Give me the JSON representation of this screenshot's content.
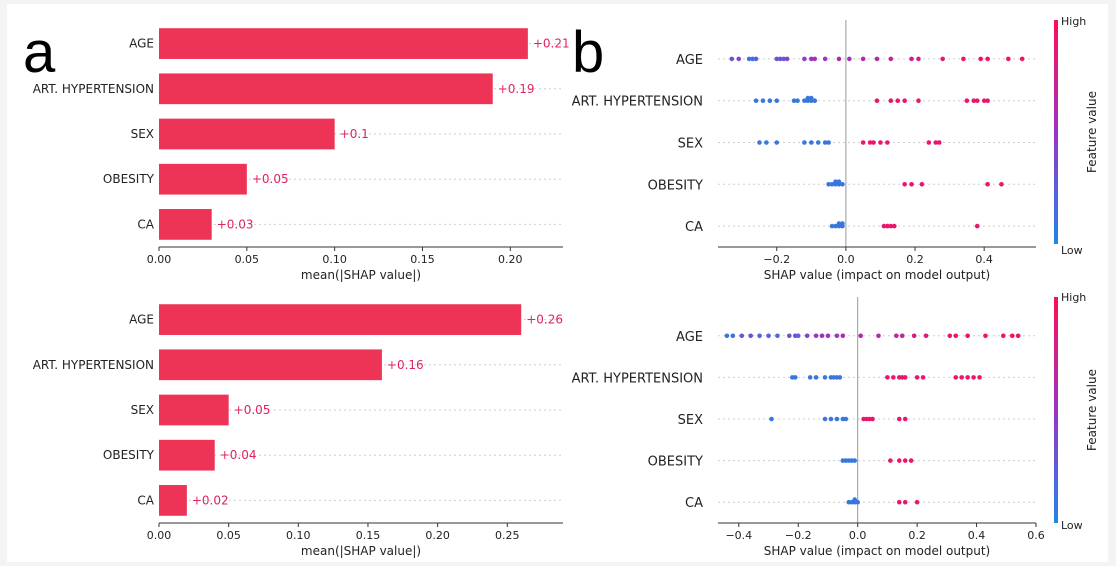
{
  "panel_labels": {
    "a": "a",
    "b": "b"
  },
  "colors": {
    "bar": "#ed3356",
    "label": "#e0245e",
    "low": "#1e88e5",
    "high": "#ff0d57",
    "mid": "#9b33c4"
  },
  "chart_data": [
    {
      "id": "bar-top",
      "type": "bar",
      "orientation": "horizontal",
      "categories": [
        "AGE",
        "ART. HYPERTENSION",
        "SEX",
        "OBESITY",
        "CA"
      ],
      "values": [
        0.21,
        0.19,
        0.1,
        0.05,
        0.03
      ],
      "data_labels": [
        "+0.21",
        "+0.19",
        "+0.1",
        "+0.05",
        "+0.03"
      ],
      "xlabel": "mean(|SHAP value|)",
      "xticks": [
        0.0,
        0.05,
        0.1,
        0.15,
        0.2
      ],
      "xtick_labels": [
        "0.00",
        "0.05",
        "0.10",
        "0.15",
        "0.20"
      ],
      "xlim": [
        0,
        0.23
      ]
    },
    {
      "id": "bar-bottom",
      "type": "bar",
      "orientation": "horizontal",
      "categories": [
        "AGE",
        "ART. HYPERTENSION",
        "SEX",
        "OBESITY",
        "CA"
      ],
      "values": [
        0.26,
        0.16,
        0.05,
        0.04,
        0.02
      ],
      "data_labels": [
        "+0.26",
        "+0.16",
        "+0.05",
        "+0.04",
        "+0.02"
      ],
      "xlabel": "mean(|SHAP value|)",
      "xticks": [
        0.0,
        0.05,
        0.1,
        0.15,
        0.2,
        0.25
      ],
      "xtick_labels": [
        "0.00",
        "0.05",
        "0.10",
        "0.15",
        "0.20",
        "0.25"
      ],
      "xlim": [
        0,
        0.29
      ]
    },
    {
      "id": "beeswarm-top",
      "type": "scatter",
      "categories": [
        "AGE",
        "ART. HYPERTENSION",
        "SEX",
        "OBESITY",
        "CA"
      ],
      "xlabel": "SHAP value (impact on model output)",
      "xticks": [
        -0.2,
        0.0,
        0.2,
        0.4
      ],
      "xtick_labels": [
        "−0.2",
        "0.0",
        "0.2",
        "0.4"
      ],
      "xlim": [
        -0.37,
        0.55
      ],
      "colorbar": {
        "label": "Feature value",
        "high": "High",
        "low": "Low"
      },
      "series": [
        {
          "name": "AGE",
          "points": [
            [
              -0.33,
              0.3
            ],
            [
              -0.31,
              0.35
            ],
            [
              -0.28,
              0.1
            ],
            [
              -0.27,
              0.15
            ],
            [
              -0.26,
              0.2
            ],
            [
              -0.2,
              0.3
            ],
            [
              -0.19,
              0.35
            ],
            [
              -0.18,
              0.3
            ],
            [
              -0.17,
              0.4
            ],
            [
              -0.12,
              0.45
            ],
            [
              -0.1,
              0.5
            ],
            [
              -0.09,
              0.55
            ],
            [
              -0.06,
              0.5
            ],
            [
              -0.02,
              0.6
            ],
            [
              0.01,
              0.55
            ],
            [
              0.05,
              0.65
            ],
            [
              0.09,
              0.6
            ],
            [
              0.13,
              0.7
            ],
            [
              0.19,
              0.75
            ],
            [
              0.21,
              0.8
            ],
            [
              0.28,
              0.85
            ],
            [
              0.34,
              0.9
            ],
            [
              0.39,
              0.95
            ],
            [
              0.41,
              0.95
            ],
            [
              0.47,
              0.95
            ],
            [
              0.51,
              0.95
            ]
          ]
        },
        {
          "name": "ART. HYPERTENSION",
          "points": [
            [
              -0.26,
              0.1
            ],
            [
              -0.24,
              0.1
            ],
            [
              -0.22,
              0.1
            ],
            [
              -0.2,
              0.1
            ],
            [
              -0.15,
              0.1
            ],
            [
              -0.14,
              0.1
            ],
            [
              -0.12,
              0.1
            ],
            [
              -0.11,
              0.1
            ],
            [
              -0.11,
              0.1
            ],
            [
              -0.1,
              0.1
            ],
            [
              -0.1,
              0.1
            ],
            [
              -0.09,
              0.1
            ],
            [
              0.09,
              0.9
            ],
            [
              0.13,
              0.9
            ],
            [
              0.15,
              0.9
            ],
            [
              0.17,
              0.9
            ],
            [
              0.21,
              0.9
            ],
            [
              0.35,
              0.9
            ],
            [
              0.37,
              0.9
            ],
            [
              0.38,
              0.9
            ],
            [
              0.4,
              0.9
            ],
            [
              0.41,
              0.9
            ]
          ]
        },
        {
          "name": "SEX",
          "points": [
            [
              -0.25,
              0.1
            ],
            [
              -0.23,
              0.1
            ],
            [
              -0.2,
              0.1
            ],
            [
              -0.12,
              0.1
            ],
            [
              -0.1,
              0.1
            ],
            [
              -0.08,
              0.1
            ],
            [
              -0.06,
              0.1
            ],
            [
              -0.05,
              0.1
            ],
            [
              0.05,
              0.9
            ],
            [
              0.07,
              0.9
            ],
            [
              0.08,
              0.9
            ],
            [
              0.1,
              0.9
            ],
            [
              0.12,
              0.9
            ],
            [
              0.24,
              0.9
            ],
            [
              0.26,
              0.9
            ],
            [
              0.27,
              0.9
            ]
          ]
        },
        {
          "name": "OBESITY",
          "points": [
            [
              -0.05,
              0.1
            ],
            [
              -0.04,
              0.1
            ],
            [
              -0.03,
              0.1
            ],
            [
              -0.03,
              0.1
            ],
            [
              -0.02,
              0.1
            ],
            [
              -0.02,
              0.1
            ],
            [
              -0.01,
              0.1
            ],
            [
              0.17,
              0.9
            ],
            [
              0.19,
              0.9
            ],
            [
              0.22,
              0.9
            ],
            [
              0.41,
              0.9
            ],
            [
              0.45,
              0.9
            ]
          ]
        },
        {
          "name": "CA",
          "points": [
            [
              -0.04,
              0.1
            ],
            [
              -0.03,
              0.1
            ],
            [
              -0.02,
              0.1
            ],
            [
              -0.02,
              0.1
            ],
            [
              -0.01,
              0.1
            ],
            [
              -0.01,
              0.1
            ],
            [
              0.11,
              0.9
            ],
            [
              0.12,
              0.9
            ],
            [
              0.13,
              0.9
            ],
            [
              0.14,
              0.9
            ],
            [
              0.38,
              0.9
            ]
          ]
        }
      ]
    },
    {
      "id": "beeswarm-bottom",
      "type": "scatter",
      "categories": [
        "AGE",
        "ART. HYPERTENSION",
        "SEX",
        "OBESITY",
        "CA"
      ],
      "xlabel": "SHAP value (impact on model output)",
      "xticks": [
        -0.4,
        -0.2,
        0.0,
        0.2,
        0.4,
        0.6
      ],
      "xtick_labels": [
        "−0.4",
        "−0.2",
        "0.0",
        "0.2",
        "0.4",
        "0.6"
      ],
      "xlim": [
        -0.47,
        0.6
      ],
      "colorbar": {
        "label": "Feature value",
        "high": "High",
        "low": "Low"
      },
      "series": [
        {
          "name": "AGE",
          "points": [
            [
              -0.44,
              0.1
            ],
            [
              -0.42,
              0.15
            ],
            [
              -0.39,
              0.3
            ],
            [
              -0.36,
              0.35
            ],
            [
              -0.33,
              0.2
            ],
            [
              -0.3,
              0.25
            ],
            [
              -0.27,
              0.15
            ],
            [
              -0.23,
              0.3
            ],
            [
              -0.21,
              0.35
            ],
            [
              -0.2,
              0.2
            ],
            [
              -0.17,
              0.4
            ],
            [
              -0.14,
              0.45
            ],
            [
              -0.12,
              0.55
            ],
            [
              -0.1,
              0.5
            ],
            [
              -0.07,
              0.5
            ],
            [
              -0.05,
              0.6
            ],
            [
              0.01,
              0.6
            ],
            [
              0.07,
              0.65
            ],
            [
              0.13,
              0.7
            ],
            [
              0.15,
              0.7
            ],
            [
              0.19,
              0.8
            ],
            [
              0.23,
              0.85
            ],
            [
              0.31,
              0.9
            ],
            [
              0.33,
              0.9
            ],
            [
              0.37,
              0.95
            ],
            [
              0.43,
              0.95
            ],
            [
              0.49,
              0.95
            ],
            [
              0.52,
              0.95
            ],
            [
              0.54,
              0.95
            ]
          ]
        },
        {
          "name": "ART. HYPERTENSION",
          "points": [
            [
              -0.22,
              0.1
            ],
            [
              -0.21,
              0.1
            ],
            [
              -0.16,
              0.1
            ],
            [
              -0.14,
              0.1
            ],
            [
              -0.11,
              0.1
            ],
            [
              -0.09,
              0.1
            ],
            [
              -0.08,
              0.1
            ],
            [
              -0.07,
              0.1
            ],
            [
              -0.06,
              0.1
            ],
            [
              0.1,
              0.9
            ],
            [
              0.12,
              0.9
            ],
            [
              0.14,
              0.9
            ],
            [
              0.15,
              0.9
            ],
            [
              0.16,
              0.9
            ],
            [
              0.2,
              0.9
            ],
            [
              0.22,
              0.9
            ],
            [
              0.33,
              0.9
            ],
            [
              0.35,
              0.9
            ],
            [
              0.37,
              0.9
            ],
            [
              0.39,
              0.9
            ],
            [
              0.41,
              0.9
            ]
          ]
        },
        {
          "name": "SEX",
          "points": [
            [
              -0.29,
              0.1
            ],
            [
              -0.11,
              0.1
            ],
            [
              -0.09,
              0.1
            ],
            [
              -0.07,
              0.1
            ],
            [
              -0.05,
              0.1
            ],
            [
              -0.04,
              0.1
            ],
            [
              0.02,
              0.9
            ],
            [
              0.03,
              0.9
            ],
            [
              0.04,
              0.9
            ],
            [
              0.05,
              0.9
            ],
            [
              0.14,
              0.9
            ],
            [
              0.16,
              0.9
            ]
          ]
        },
        {
          "name": "OBESITY",
          "points": [
            [
              -0.05,
              0.1
            ],
            [
              -0.04,
              0.1
            ],
            [
              -0.03,
              0.1
            ],
            [
              -0.02,
              0.1
            ],
            [
              -0.01,
              0.1
            ],
            [
              0.11,
              0.9
            ],
            [
              0.14,
              0.9
            ],
            [
              0.16,
              0.9
            ],
            [
              0.18,
              0.9
            ]
          ]
        },
        {
          "name": "CA",
          "points": [
            [
              -0.03,
              0.1
            ],
            [
              -0.02,
              0.1
            ],
            [
              -0.01,
              0.1
            ],
            [
              -0.01,
              0.1
            ],
            [
              0.0,
              0.1
            ],
            [
              0.14,
              0.9
            ],
            [
              0.16,
              0.9
            ],
            [
              0.2,
              0.9
            ]
          ]
        }
      ]
    }
  ]
}
